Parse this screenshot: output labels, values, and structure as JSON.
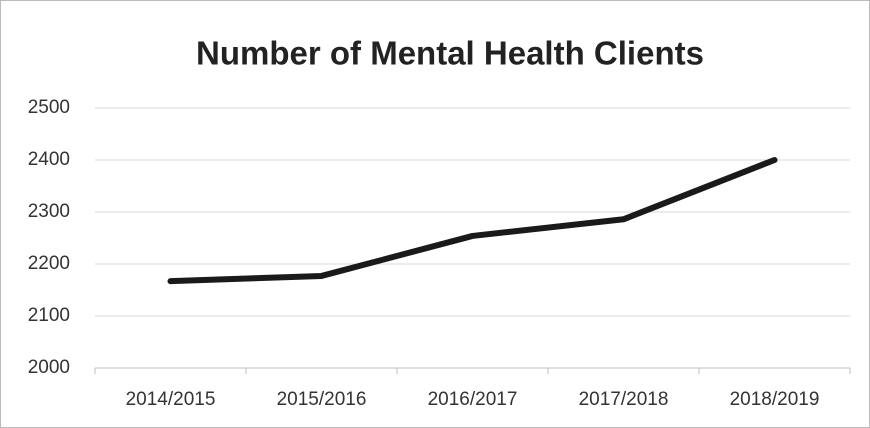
{
  "chart_data": {
    "type": "line",
    "title": "Number of Mental Health Clients",
    "categories": [
      "2014/2015",
      "2015/2016",
      "2016/2017",
      "2017/2018",
      "2018/2019"
    ],
    "series": [
      {
        "name": "Clients",
        "color": "#1a1a1a",
        "values": [
          2167,
          2177,
          2254,
          2286,
          2400
        ]
      }
    ],
    "ylim": [
      2000,
      2500
    ],
    "yticks": [
      2000,
      2100,
      2200,
      2300,
      2400,
      2500
    ],
    "grid": true
  }
}
